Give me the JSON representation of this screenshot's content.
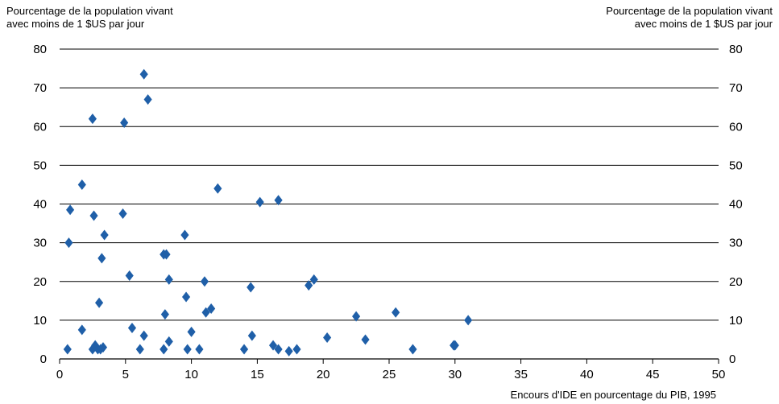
{
  "chart_data": {
    "type": "scatter",
    "ylabel_left": [
      "Pourcentage de la population vivant",
      "avec moins de 1 $US par jour"
    ],
    "ylabel_right": [
      "Pourcentage de la population vivant",
      "avec moins de 1 $US par jour"
    ],
    "xlabel": "Encours d'IDE en pourcentage du PIB, 1995",
    "xlim": [
      0,
      50
    ],
    "ylim": [
      0,
      80
    ],
    "xticks": [
      0,
      5,
      10,
      15,
      20,
      25,
      30,
      35,
      40,
      45,
      50
    ],
    "yticks": [
      0,
      10,
      20,
      30,
      40,
      50,
      60,
      70,
      80
    ],
    "grid": "horizontal",
    "marker": "diamond",
    "color": "#1f5fa8",
    "points": [
      {
        "x": 0.6,
        "y": 2.5
      },
      {
        "x": 0.7,
        "y": 30
      },
      {
        "x": 0.8,
        "y": 38.5
      },
      {
        "x": 1.7,
        "y": 45
      },
      {
        "x": 1.7,
        "y": 7.5
      },
      {
        "x": 2.5,
        "y": 62
      },
      {
        "x": 2.6,
        "y": 37
      },
      {
        "x": 2.5,
        "y": 2.5
      },
      {
        "x": 2.7,
        "y": 3.5
      },
      {
        "x": 2.9,
        "y": 2.5
      },
      {
        "x": 3.0,
        "y": 14.5
      },
      {
        "x": 3.1,
        "y": 2.5
      },
      {
        "x": 3.2,
        "y": 26
      },
      {
        "x": 3.3,
        "y": 3
      },
      {
        "x": 3.4,
        "y": 32
      },
      {
        "x": 4.8,
        "y": 37.5
      },
      {
        "x": 4.9,
        "y": 61
      },
      {
        "x": 5.3,
        "y": 21.5
      },
      {
        "x": 5.5,
        "y": 8
      },
      {
        "x": 6.1,
        "y": 2.5
      },
      {
        "x": 6.4,
        "y": 73.5
      },
      {
        "x": 6.4,
        "y": 6
      },
      {
        "x": 6.7,
        "y": 67
      },
      {
        "x": 7.9,
        "y": 27
      },
      {
        "x": 8.1,
        "y": 27
      },
      {
        "x": 7.9,
        "y": 2.5
      },
      {
        "x": 8.0,
        "y": 11.5
      },
      {
        "x": 8.3,
        "y": 4.5
      },
      {
        "x": 8.3,
        "y": 20.5
      },
      {
        "x": 9.5,
        "y": 32
      },
      {
        "x": 9.6,
        "y": 16
      },
      {
        "x": 9.7,
        "y": 2.5
      },
      {
        "x": 10.0,
        "y": 7
      },
      {
        "x": 10.6,
        "y": 2.5
      },
      {
        "x": 11.0,
        "y": 20
      },
      {
        "x": 11.1,
        "y": 12
      },
      {
        "x": 11.5,
        "y": 13
      },
      {
        "x": 12.0,
        "y": 44
      },
      {
        "x": 14.0,
        "y": 2.5
      },
      {
        "x": 14.5,
        "y": 18.5
      },
      {
        "x": 14.6,
        "y": 6
      },
      {
        "x": 15.2,
        "y": 40.5
      },
      {
        "x": 16.2,
        "y": 3.5
      },
      {
        "x": 16.6,
        "y": 41
      },
      {
        "x": 16.6,
        "y": 2.5
      },
      {
        "x": 17.4,
        "y": 2
      },
      {
        "x": 18.0,
        "y": 2.5
      },
      {
        "x": 18.9,
        "y": 19
      },
      {
        "x": 19.3,
        "y": 20.5
      },
      {
        "x": 20.3,
        "y": 5.5
      },
      {
        "x": 22.5,
        "y": 11
      },
      {
        "x": 23.2,
        "y": 5
      },
      {
        "x": 25.5,
        "y": 12
      },
      {
        "x": 26.8,
        "y": 2.5
      },
      {
        "x": 29.9,
        "y": 3.5
      },
      {
        "x": 30.0,
        "y": 3.5
      },
      {
        "x": 31.0,
        "y": 10
      }
    ]
  }
}
